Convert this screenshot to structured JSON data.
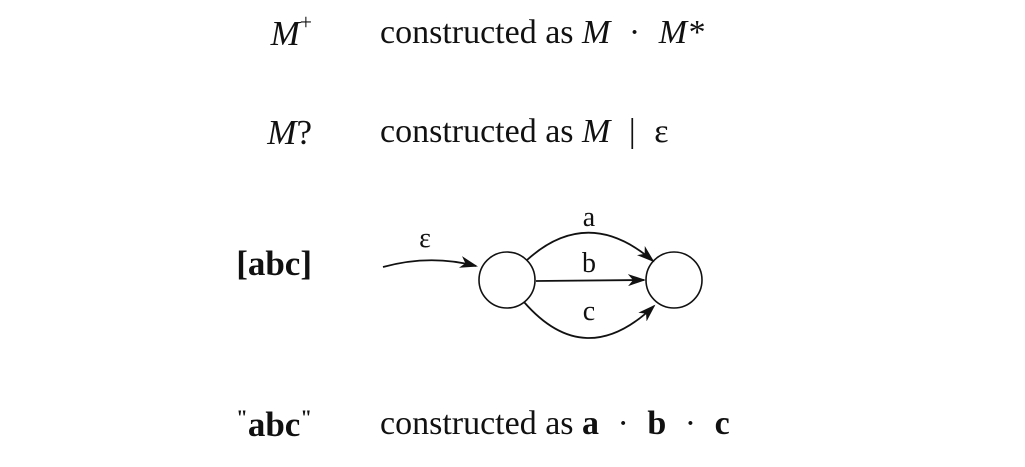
{
  "rows": [
    {
      "lhs_base": "M",
      "lhs_suffix": "+",
      "rhs_prefix": "constructed as",
      "rhs_tokens": [
        "M",
        "·",
        "M*"
      ]
    },
    {
      "lhs_base": "M",
      "lhs_suffix": "?",
      "rhs_prefix": "constructed as",
      "rhs_tokens": [
        "M",
        "|",
        "ε"
      ]
    },
    {
      "lhs": "[abc]",
      "diagram": {
        "entry_label": "ε",
        "edge_labels": [
          "a",
          "b",
          "c"
        ]
      }
    },
    {
      "lhs_open_quote": "\"",
      "lhs_text": "abc",
      "lhs_close_quote": "\"",
      "rhs_prefix": "constructed as",
      "rhs_tokens": [
        "a",
        "·",
        "b",
        "·",
        "c"
      ]
    }
  ]
}
